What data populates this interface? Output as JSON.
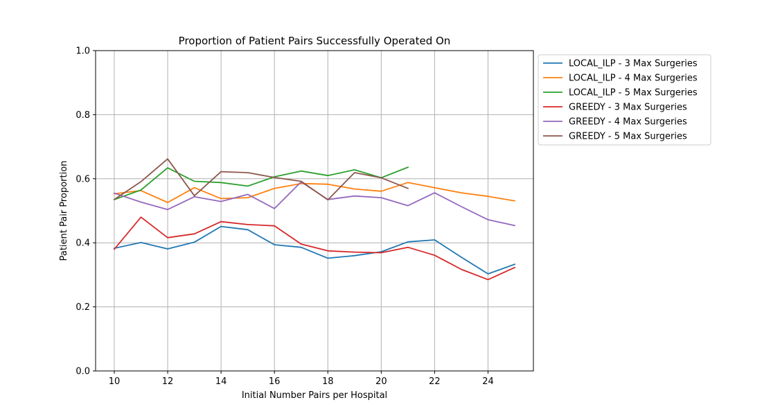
{
  "chart_data": {
    "type": "line",
    "title": "Proportion of Patient Pairs Successfully Operated On",
    "xlabel": "Initial Number Pairs per Hospital",
    "ylabel": "Patient Pair Proportion",
    "xlim": [
      9.3,
      25.7
    ],
    "ylim": [
      0.0,
      1.0
    ],
    "xticks": [
      10,
      12,
      14,
      16,
      18,
      20,
      22,
      24
    ],
    "xtick_labels": [
      "10",
      "12",
      "14",
      "16",
      "18",
      "20",
      "22",
      "24"
    ],
    "yticks": [
      0.0,
      0.2,
      0.4,
      0.6,
      0.8,
      1.0
    ],
    "ytick_labels": [
      "0.0",
      "0.2",
      "0.4",
      "0.6",
      "0.8",
      "1.0"
    ],
    "grid": true,
    "legend_position": "outside-top-right",
    "series": [
      {
        "name": "LOCAL_ILP - 3 Max Surgeries",
        "color": "#1f77b4",
        "x": [
          10,
          11,
          12,
          13,
          14,
          15,
          16,
          17,
          18,
          19,
          20,
          21,
          22,
          23,
          24,
          25
        ],
        "y": [
          0.383,
          0.401,
          0.381,
          0.402,
          0.451,
          0.441,
          0.394,
          0.386,
          0.352,
          0.36,
          0.372,
          0.403,
          0.409,
          0.355,
          0.303,
          0.333
        ]
      },
      {
        "name": "LOCAL_ILP - 4 Max Surgeries",
        "color": "#ff7f0e",
        "x": [
          10,
          11,
          12,
          13,
          14,
          15,
          16,
          17,
          18,
          19,
          20,
          21,
          22,
          23,
          24,
          25
        ],
        "y": [
          0.553,
          0.563,
          0.526,
          0.572,
          0.538,
          0.541,
          0.57,
          0.585,
          0.583,
          0.568,
          0.561,
          0.588,
          0.572,
          0.556,
          0.545,
          0.531
        ]
      },
      {
        "name": "LOCAL_ILP - 5 Max Surgeries",
        "color": "#2ca02c",
        "x": [
          10,
          11,
          12,
          13,
          14,
          15,
          16,
          17,
          18,
          19,
          20,
          21
        ],
        "y": [
          0.535,
          0.565,
          0.634,
          0.592,
          0.588,
          0.577,
          0.606,
          0.624,
          0.61,
          0.628,
          0.603,
          0.636
        ]
      },
      {
        "name": "GREEDY - 3 Max Surgeries",
        "color": "#d62728",
        "x": [
          10,
          11,
          12,
          13,
          14,
          15,
          16,
          17,
          18,
          19,
          20,
          21,
          22,
          23,
          24,
          25
        ],
        "y": [
          0.38,
          0.48,
          0.416,
          0.428,
          0.466,
          0.457,
          0.453,
          0.396,
          0.375,
          0.371,
          0.369,
          0.386,
          0.361,
          0.317,
          0.285,
          0.323
        ]
      },
      {
        "name": "GREEDY - 4 Max Surgeries",
        "color": "#9467bd",
        "x": [
          10,
          11,
          12,
          13,
          14,
          15,
          16,
          17,
          18,
          19,
          20,
          21,
          22,
          23,
          24,
          25
        ],
        "y": [
          0.555,
          0.527,
          0.504,
          0.544,
          0.529,
          0.551,
          0.507,
          0.59,
          0.535,
          0.546,
          0.541,
          0.516,
          0.556,
          0.513,
          0.472,
          0.454
        ]
      },
      {
        "name": "GREEDY - 5 Max Surgeries",
        "color": "#8c564b",
        "x": [
          10,
          11,
          12,
          13,
          14,
          15,
          16,
          17,
          18,
          19,
          20,
          21
        ],
        "y": [
          0.535,
          0.591,
          0.662,
          0.547,
          0.622,
          0.619,
          0.604,
          0.592,
          0.534,
          0.619,
          0.603,
          0.57
        ]
      }
    ]
  }
}
